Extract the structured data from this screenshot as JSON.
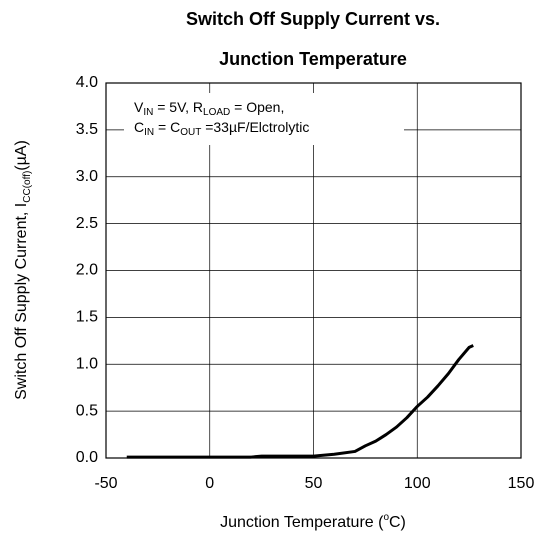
{
  "chart_data": {
    "type": "line",
    "title": [
      "Switch Off Supply Current vs.",
      "Junction Temperature"
    ],
    "xlabel": [
      "Junction Temperature (",
      "o",
      "C)"
    ],
    "ylabel": [
      "Switch Off Supply Current, I",
      "CC(off)",
      "(µA)"
    ],
    "annotation": [
      [
        "V",
        "IN",
        " = 5V, R",
        "LOAD",
        " = Open,"
      ],
      [
        "C",
        "IN",
        " = C",
        "OUT",
        " =33µF/Elctrolytic"
      ]
    ],
    "x": [
      -40,
      -20,
      0,
      20,
      25,
      50,
      60,
      70,
      75,
      80,
      85,
      90,
      95,
      100,
      105,
      110,
      115,
      120,
      125,
      127
    ],
    "series": [
      {
        "color": "#000000",
        "values": [
          0.01,
          0.01,
          0.01,
          0.01,
          0.02,
          0.02,
          0.04,
          0.07,
          0.13,
          0.18,
          0.25,
          0.33,
          0.43,
          0.55,
          0.65,
          0.77,
          0.9,
          1.05,
          1.18,
          1.2
        ]
      }
    ],
    "xlim": [
      -50,
      150
    ],
    "xticks": [
      -50,
      0,
      50,
      100,
      150
    ],
    "ylim": [
      0,
      4
    ],
    "yticks": [
      {
        "value": 0,
        "label": "0.0"
      },
      {
        "value": 0.5,
        "label": "0.5"
      },
      {
        "value": 1,
        "label": "1.0"
      },
      {
        "value": 1.5,
        "label": "1.5"
      },
      {
        "value": 2,
        "label": "2.0"
      },
      {
        "value": 2.5,
        "label": "2.5"
      },
      {
        "value": 3,
        "label": "3.0"
      },
      {
        "value": 3.5,
        "label": "3.5"
      },
      {
        "value": 4,
        "label": "4.0"
      }
    ],
    "grid": true
  }
}
